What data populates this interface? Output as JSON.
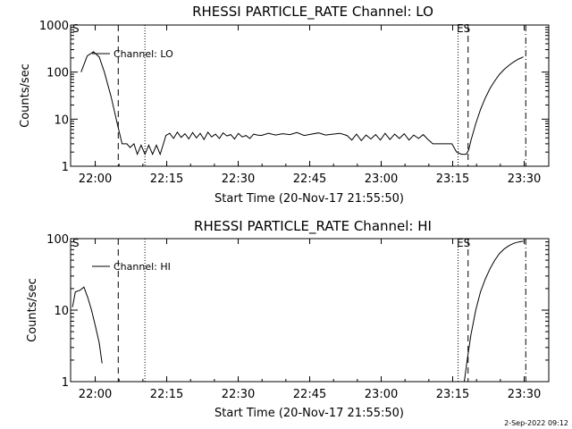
{
  "footer": {
    "timestamp": "2-Sep-2022 09:12"
  },
  "chart_data": [
    {
      "type": "line",
      "title": "RHESSI PARTICLE_RATE Channel: LO",
      "xlabel": "Start Time (20-Nov-17 21:55:50)",
      "ylabel": "Counts/sec",
      "yscale": "log",
      "ylim": [
        1,
        1000
      ],
      "xlim_minutes": [
        -1.0,
        36.8
      ],
      "x_ticks": [
        {
          "min": 4.17,
          "label": "22:00"
        },
        {
          "min": 19.17,
          "label": "22:15"
        },
        {
          "min": 34.17,
          "label": "22:30"
        },
        {
          "min": 49.17,
          "label": "22:45"
        },
        {
          "min": 64.17,
          "label": "23:00"
        },
        {
          "min": 79.17,
          "label": "23:15"
        },
        {
          "min": 94.17,
          "label": "23:30"
        }
      ],
      "y_ticks": [
        {
          "value": 1,
          "label": "1"
        },
        {
          "value": 10,
          "label": "10"
        },
        {
          "value": 100,
          "label": "100"
        },
        {
          "value": 1000,
          "label": "1000"
        }
      ],
      "legend": "Channel: LO",
      "markers": {
        "start": "S",
        "end": "ES"
      },
      "series": [
        {
          "x": [
            1.2,
            2.5,
            3.8,
            5.0,
            6.1,
            7.5,
            8.8,
            9.8,
            10.8,
            11.5,
            12.3,
            13.0,
            13.8,
            14.6,
            15.4,
            16.2,
            17.0,
            17.8,
            18.4,
            19.0,
            19.8,
            20.6,
            21.4,
            22.2,
            23.0,
            23.8,
            24.6,
            25.4,
            26.2,
            27.0,
            27.8,
            28.6,
            29.4,
            30.2,
            31.0,
            31.8,
            32.6,
            33.4,
            34.2,
            35.0,
            35.8,
            36.6,
            37.4,
            38.2,
            39.0,
            40.5,
            42.0,
            43.5,
            45.0,
            46.5,
            48.0,
            49.5,
            51.0,
            52.5,
            54.0,
            55.5,
            57.0,
            58.0,
            59.0,
            60.0,
            61.0,
            62.0,
            63.0,
            64.0,
            65.0,
            66.0,
            67.0,
            68.0,
            69.0,
            70.0,
            71.0,
            72.0,
            73.0,
            74.0,
            75.0,
            76.0,
            77.0,
            78.0,
            79.0,
            80.0,
            81.0,
            82.0,
            82.5,
            83.0,
            84.0,
            85.0,
            86.0,
            87.0,
            88.0,
            89.0,
            90.0,
            91.0,
            92.0,
            93.0,
            94.0
          ],
          "y": [
            100,
            220,
            270,
            210,
            100,
            30,
            8,
            3,
            3,
            2.5,
            3,
            1.8,
            2.8,
            1.8,
            2.8,
            1.8,
            2.8,
            1.8,
            2.8,
            4.5,
            5.0,
            3.9,
            5.3,
            4.1,
            4.9,
            3.8,
            5.2,
            4.0,
            5.0,
            3.7,
            5.3,
            4.2,
            4.8,
            3.9,
            5.1,
            4.4,
            4.7,
            3.8,
            5.0,
            4.2,
            4.5,
            3.9,
            4.8,
            4.6,
            4.5,
            5.0,
            4.6,
            4.9,
            4.7,
            5.2,
            4.5,
            4.8,
            5.1,
            4.6,
            4.8,
            5.0,
            4.5,
            3.6,
            4.8,
            3.5,
            4.6,
            3.8,
            4.7,
            3.6,
            5.0,
            3.7,
            4.8,
            3.9,
            4.9,
            3.6,
            4.6,
            3.9,
            4.7,
            3.7,
            3.0,
            3.0,
            3.0,
            3.0,
            3.0,
            2.0,
            1.8,
            1.8,
            2.2,
            3.5,
            8.0,
            16,
            28,
            45,
            65,
            90,
            115,
            140,
            165,
            190,
            210
          ]
        }
      ]
    },
    {
      "type": "line",
      "title": "RHESSI PARTICLE_RATE Channel: HI",
      "xlabel": "Start Time (20-Nov-17 21:55:50)",
      "ylabel": "Counts/sec",
      "yscale": "log",
      "ylim": [
        1,
        100
      ],
      "x_ticks": [
        {
          "min": 4.17,
          "label": "22:00"
        },
        {
          "min": 19.17,
          "label": "22:15"
        },
        {
          "min": 34.17,
          "label": "22:30"
        },
        {
          "min": 49.17,
          "label": "22:45"
        },
        {
          "min": 64.17,
          "label": "23:00"
        },
        {
          "min": 79.17,
          "label": "23:15"
        },
        {
          "min": 94.17,
          "label": "23:30"
        }
      ],
      "y_ticks": [
        {
          "value": 1,
          "label": "1"
        },
        {
          "value": 10,
          "label": "10"
        },
        {
          "value": 100,
          "label": "100"
        }
      ],
      "legend": "Channel: HI",
      "markers": {
        "start": "S",
        "end": "ES"
      },
      "series": [
        {
          "segments": [
            {
              "x": [
                -0.6,
                0.0,
                1.0,
                1.8,
                2.6,
                3.4,
                4.2,
                5.0,
                5.6
              ],
              "y": [
                11,
                18,
                19,
                21,
                15,
                10,
                6,
                3.5,
                1.8
              ]
            },
            {
              "x": [
                81.6,
                82.2,
                83.0,
                84.0,
                85.0,
                86.0,
                87.0,
                88.0,
                89.0,
                90.0,
                91.0,
                92.0,
                93.0,
                94.0
              ],
              "y": [
                1.0,
                2.0,
                4.5,
                10,
                18,
                27,
                38,
                50,
                62,
                72,
                80,
                86,
                90,
                92
              ]
            }
          ]
        }
      ]
    }
  ]
}
